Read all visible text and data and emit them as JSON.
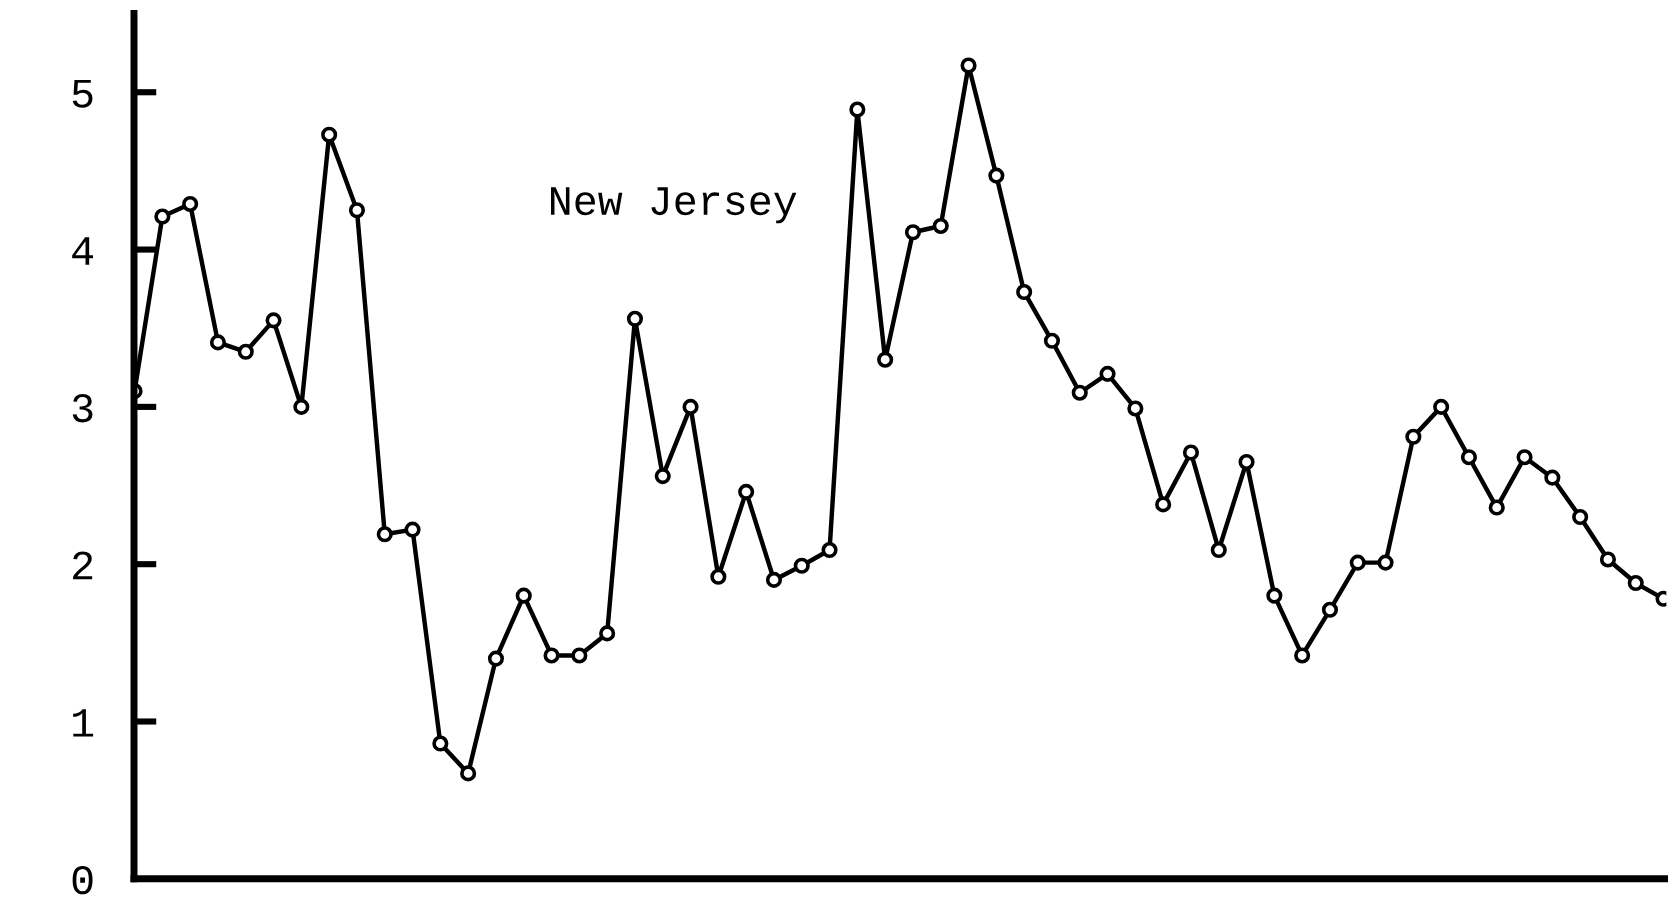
{
  "chart_data": {
    "type": "line",
    "annotations": [
      "New Jersey"
    ],
    "categories": [
      null,
      null,
      null,
      null,
      null,
      null,
      null,
      null,
      null,
      null,
      null,
      null,
      null,
      null,
      null,
      null,
      null,
      null,
      null,
      null,
      null,
      null,
      null,
      null,
      null,
      null,
      null,
      null,
      null,
      null,
      null,
      null,
      null,
      null,
      null,
      null,
      null,
      null,
      null,
      null,
      null,
      null,
      null,
      null,
      null,
      null,
      null,
      null,
      null,
      null,
      null,
      null,
      null,
      null,
      null,
      null
    ],
    "series": [
      {
        "color": "#000000",
        "values": [
          3.1,
          4.21,
          4.29,
          3.41,
          3.35,
          3.55,
          3.0,
          4.73,
          4.25,
          2.19,
          2.22,
          0.86,
          0.67,
          1.4,
          1.8,
          1.42,
          1.42,
          1.56,
          3.56,
          2.56,
          3.0,
          1.92,
          2.46,
          1.9,
          1.99,
          2.09,
          4.89,
          3.3,
          4.11,
          4.15,
          5.17,
          4.47,
          3.73,
          3.42,
          3.09,
          3.21,
          2.99,
          2.38,
          2.71,
          2.09,
          2.65,
          1.8,
          1.42,
          1.71,
          2.01,
          2.01,
          2.81,
          3.0,
          2.68,
          2.36,
          2.68,
          2.55,
          2.3,
          2.03,
          1.88,
          1.78
        ]
      }
    ],
    "marker": "circle",
    "ylim": [
      0,
      5.5
    ],
    "yticks": [
      0,
      1,
      2,
      3,
      4,
      5
    ],
    "tick_labels": "y"
  }
}
